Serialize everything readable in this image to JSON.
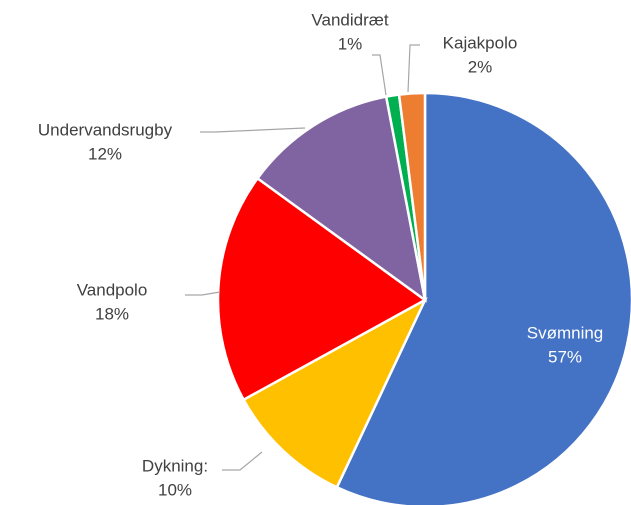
{
  "chart_data": {
    "type": "pie",
    "categories": [
      "Svømning",
      "Dykning:",
      "Vandpolo",
      "Undervandsrugby",
      "Vandidræt",
      "Kajakpolo"
    ],
    "values": [
      57,
      10,
      18,
      12,
      1,
      2
    ],
    "value_labels": [
      "57%",
      "10%",
      "18%",
      "12%",
      "1%",
      "2%"
    ],
    "colors": [
      "#4472c4",
      "#ffc000",
      "#ff0000",
      "#8064a2",
      "#00b050",
      "#ed7d31"
    ]
  }
}
